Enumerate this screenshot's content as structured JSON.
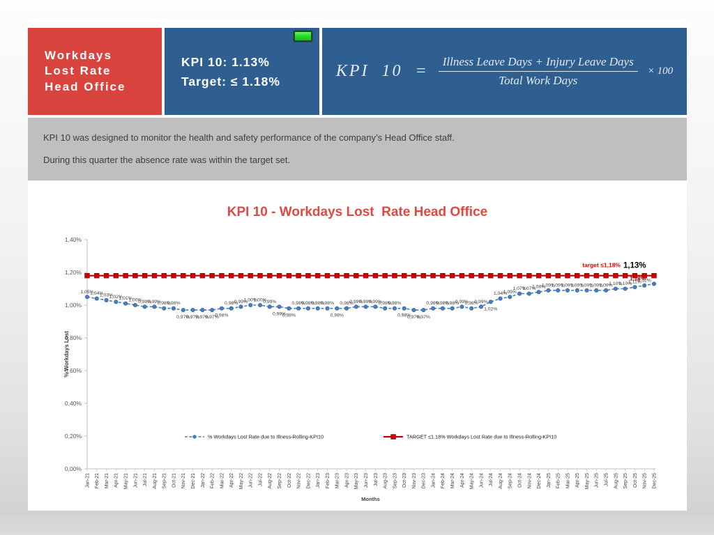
{
  "header": {
    "title_tile": {
      "lines": [
        "Workdays",
        "Lost Rate",
        "Head Office"
      ]
    },
    "kpi_tile": {
      "kpi_line": "KPI 10: 1.13%",
      "target_line": "Target: ≤ 1.18%",
      "status": "green"
    },
    "formula_tile": {
      "lhs": "KPI  10  =",
      "numerator": "Illness Leave Days + Injury Leave Days",
      "denominator": "Total Work Days",
      "suffix": "× 100"
    }
  },
  "description": {
    "paragraphs": [
      "KPI 10 was designed to monitor the health and safety performance of the company’s Head Office staff.",
      "During this quarter the absence rate was within the target set."
    ]
  },
  "colors": {
    "tile_red": "#d9453e",
    "tile_blue": "#2f5f90",
    "band_gray": "#bfbfbf",
    "title_red": "#de4a42",
    "series_blue": "#4a7ebb",
    "target_red": "#c00000",
    "status_green": "#2bde2b",
    "axis_gray": "#bfbfbf",
    "label_gray": "#404040"
  },
  "chart_data": {
    "type": "line",
    "title": "KPI 10 - Workdays Lost  Rate Head Office",
    "xlabel": "Months",
    "ylabel": "% Workdays Lost",
    "ylim": [
      0,
      1.4
    ],
    "ytick_step": 0.2,
    "grid": false,
    "legend_position": "bottom-center",
    "categories": [
      "Jan-21",
      "Feb-21",
      "Mar-21",
      "Apr-21",
      "May-21",
      "Jun-21",
      "Jul-21",
      "Aug-21",
      "Sep-21",
      "Oct-21",
      "Nov-21",
      "Dec-21",
      "Jan-22",
      "Feb-22",
      "Mar-22",
      "Apr-22",
      "May-22",
      "Jun-22",
      "Jul-22",
      "Aug-22",
      "Sep-22",
      "Oct-22",
      "Nov-22",
      "Dec-22",
      "Jan-23",
      "Feb-23",
      "Mar-23",
      "Apr-23",
      "May-23",
      "Jun-23",
      "Jul-23",
      "Aug-23",
      "Sep-23",
      "Oct-23",
      "Nov-23",
      "Dec-23",
      "Jan-24",
      "Feb-24",
      "Mar-24",
      "Apr-24",
      "May-24",
      "Jun-24",
      "Jul-24",
      "Aug-24",
      "Sep-24",
      "Oct-24",
      "Nov-24",
      "Dec-24",
      "Jan-25",
      "Feb-25",
      "Mar-25",
      "Apr-25",
      "May-25",
      "Jun-25",
      "Jul-25",
      "Aug-25",
      "Sep-25",
      "Oct-25",
      "Nov-25",
      "Dec-25"
    ],
    "series": [
      {
        "name": "% Workdays Lost Rate due to Illness-Rolling-KPI10",
        "type": "line-dashed-markers",
        "color": "#4a7ebb",
        "values": [
          1.05,
          1.04,
          1.03,
          1.02,
          1.01,
          1.0,
          0.99,
          0.99,
          0.98,
          0.98,
          0.97,
          0.97,
          0.97,
          0.97,
          0.98,
          0.98,
          0.99,
          1.0,
          1.0,
          0.99,
          0.99,
          0.98,
          0.98,
          0.98,
          0.98,
          0.98,
          0.98,
          0.98,
          0.99,
          0.99,
          0.99,
          0.98,
          0.98,
          0.98,
          0.97,
          0.97,
          0.98,
          0.98,
          0.98,
          0.99,
          0.98,
          0.99,
          1.02,
          1.04,
          1.05,
          1.07,
          1.07,
          1.08,
          1.09,
          1.09,
          1.09,
          1.09,
          1.09,
          1.09,
          1.09,
          1.1,
          1.1,
          1.11,
          1.12,
          1.13
        ]
      },
      {
        "name": "TARGET ≤1.18% Workdays Lost Rate due to Illness-Rolling-KPI10",
        "type": "line-square-markers",
        "color": "#c00000",
        "value": 1.18
      }
    ],
    "annotations": [
      {
        "text": "target ≤1,18%",
        "color": "#e00000"
      },
      {
        "text": "1,13%",
        "color": "#000000"
      },
      {
        "text": "1,18%",
        "color": "#c00000"
      }
    ],
    "label_below_indices": [
      10,
      11,
      12,
      13,
      14,
      20,
      21,
      26,
      33,
      34,
      35,
      42
    ]
  }
}
